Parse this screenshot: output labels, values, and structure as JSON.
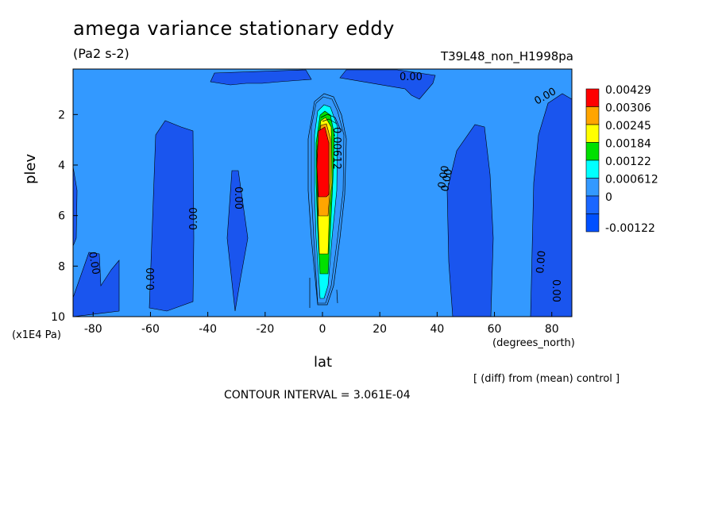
{
  "chart_data": {
    "type": "heatmap",
    "title": "amega variance stationary eddy",
    "units": "(Pa2 s-2)",
    "experiment": "T39L48_non_H1998pa",
    "xlabel": "lat",
    "xunits": "(degrees_north)",
    "ylabel": "plev",
    "yunits": "(x1E4 Pa)",
    "xlim": [
      -87,
      87
    ],
    "ylim": [
      10,
      0.2
    ],
    "x_ticks": [
      "-80",
      "-60",
      "-40",
      "-20",
      "0",
      "20",
      "40",
      "60",
      "80"
    ],
    "x_tick_values": [
      -80,
      -60,
      -40,
      -20,
      0,
      20,
      40,
      60,
      80
    ],
    "y_ticks": [
      "2",
      "4",
      "6",
      "8",
      "10"
    ],
    "y_tick_values": [
      2,
      4,
      6,
      8,
      10
    ],
    "colorbar": {
      "labels": [
        "0.00429",
        "0.00306",
        "0.00245",
        "0.00184",
        "0.00122",
        "0.000612",
        "0",
        "-0.00122"
      ],
      "colors": [
        "#ff0000",
        "#ffa500",
        "#ffff00",
        "#00e000",
        "#00ffff",
        "#3399ff",
        "#1a66ff",
        "#0050ff"
      ]
    },
    "background_level_color": "#3399ff",
    "contour_labels": [
      "0.00",
      "0.00",
      "0.00",
      "0.00",
      "0.00",
      "0.00",
      "0.00",
      "0.00",
      "0.00",
      "0.00",
      "0.00612"
    ],
    "contour_interval_text": "CONTOUR INTERVAL = 3.061E-04",
    "diff_note": "[ (diff) from (mean) control ]",
    "regions": [
      {
        "level": "negative",
        "lat": [
          -87,
          -85
        ],
        "plev": [
          3.5,
          10
        ]
      },
      {
        "level": "negative",
        "lat": [
          -62,
          -47
        ],
        "plev": [
          2.2,
          9.5
        ]
      },
      {
        "level": "negative",
        "lat": [
          -34,
          -27
        ],
        "plev": [
          4.1,
          9.8
        ]
      },
      {
        "level": "negative",
        "lat": [
          -86,
          -73
        ],
        "plev": [
          7.4,
          10
        ]
      },
      {
        "level": "negative",
        "lat": [
          44,
          58
        ],
        "plev": [
          2.2,
          10
        ]
      },
      {
        "level": "negative",
        "lat": [
          70,
          87
        ],
        "plev": [
          0.5,
          10
        ]
      },
      {
        "level": "negative",
        "lat": [
          -40,
          40
        ],
        "plev": [
          0.2,
          0.8
        ]
      },
      {
        "level": "positive-peak",
        "lat": [
          -2,
          2
        ],
        "plev": [
          2.5,
          4.5
        ],
        "value": 0.00429
      },
      {
        "level": "positive",
        "lat": [
          -4,
          4
        ],
        "plev": [
          2,
          9.3
        ],
        "value": 0.0012
      }
    ]
  }
}
